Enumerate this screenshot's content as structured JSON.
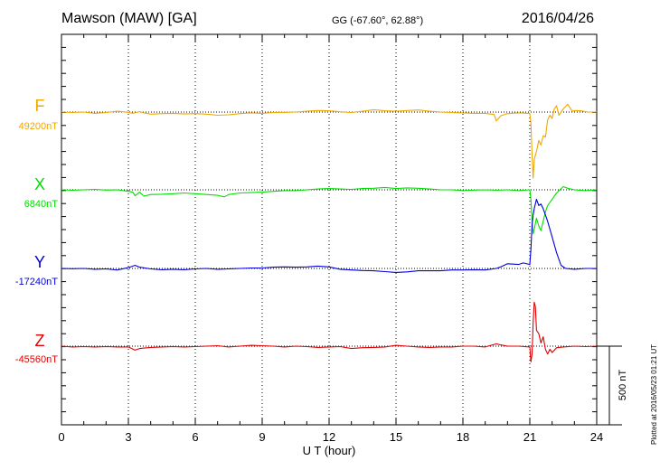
{
  "header": {
    "station": "Mawson (MAW)  [GA]",
    "coords": "GG (-67.60°,  62.88°)",
    "date": "2016/04/26"
  },
  "plotted": "Plotted at 2016/05/23 01:21  UT",
  "chart_data": {
    "type": "line",
    "xlabel": "U T (hour)",
    "xlim": [
      0,
      24
    ],
    "xticks": [
      0,
      3,
      6,
      9,
      12,
      15,
      18,
      21,
      24
    ],
    "ylabel": "",
    "scale_bar": {
      "label": "500 nT",
      "value_nT": 500
    },
    "series": [
      {
        "name": "F",
        "baseline_label": "49200nT",
        "baseline_nT": 49200,
        "color": "#f0a800",
        "points": [
          [
            0,
            0
          ],
          [
            0.5,
            -3
          ],
          [
            1,
            0
          ],
          [
            1.5,
            -8
          ],
          [
            2,
            -3
          ],
          [
            2.5,
            5
          ],
          [
            3,
            -2
          ],
          [
            3.2,
            -8
          ],
          [
            3.5,
            3
          ],
          [
            3.7,
            -5
          ],
          [
            4,
            -13
          ],
          [
            4.5,
            -10
          ],
          [
            5,
            -8
          ],
          [
            5.5,
            -12
          ],
          [
            6,
            -10
          ],
          [
            6.5,
            -13
          ],
          [
            7,
            -20
          ],
          [
            7.5,
            -17
          ],
          [
            8,
            -10
          ],
          [
            8.5,
            -5
          ],
          [
            9,
            -8
          ],
          [
            9.5,
            -3
          ],
          [
            10,
            -2
          ],
          [
            10.5,
            0
          ],
          [
            11,
            5
          ],
          [
            11.5,
            10
          ],
          [
            12,
            8
          ],
          [
            12.5,
            2
          ],
          [
            13,
            -3
          ],
          [
            13.5,
            5
          ],
          [
            14,
            15
          ],
          [
            14.5,
            8
          ],
          [
            15,
            5
          ],
          [
            15.5,
            10
          ],
          [
            16,
            13
          ],
          [
            16.5,
            5
          ],
          [
            17,
            0
          ],
          [
            17.5,
            -3
          ],
          [
            18,
            -5
          ],
          [
            18.5,
            -8
          ],
          [
            19,
            -8
          ],
          [
            19.4,
            -15
          ],
          [
            19.5,
            -57
          ],
          [
            19.7,
            -23
          ],
          [
            20,
            -10
          ],
          [
            20.5,
            -5
          ],
          [
            21,
            -8
          ],
          [
            21.05,
            -70
          ],
          [
            21.1,
            -275
          ],
          [
            21.15,
            -420
          ],
          [
            21.2,
            -300
          ],
          [
            21.3,
            -250
          ],
          [
            21.4,
            -180
          ],
          [
            21.5,
            -210
          ],
          [
            21.6,
            -150
          ],
          [
            21.7,
            -160
          ],
          [
            21.8,
            -50
          ],
          [
            21.9,
            -20
          ],
          [
            22,
            -40
          ],
          [
            22.1,
            20
          ],
          [
            22.2,
            40
          ],
          [
            22.3,
            -20
          ],
          [
            22.5,
            20
          ],
          [
            22.7,
            50
          ],
          [
            22.9,
            5
          ],
          [
            23,
            10
          ],
          [
            23.3,
            8
          ],
          [
            23.6,
            0
          ],
          [
            24,
            0
          ]
        ]
      },
      {
        "name": "X",
        "baseline_label": "6840nT",
        "baseline_nT": 6840,
        "color": "#00e000",
        "points": [
          [
            0,
            0
          ],
          [
            0.5,
            -3
          ],
          [
            1,
            0
          ],
          [
            1.5,
            3
          ],
          [
            2,
            -2
          ],
          [
            2.5,
            0
          ],
          [
            3,
            -10
          ],
          [
            3.2,
            -15
          ],
          [
            3.3,
            -38
          ],
          [
            3.5,
            -15
          ],
          [
            3.7,
            -40
          ],
          [
            4,
            -30
          ],
          [
            4.5,
            -28
          ],
          [
            5,
            -25
          ],
          [
            5.5,
            -20
          ],
          [
            6,
            -25
          ],
          [
            6.5,
            -30
          ],
          [
            7,
            -35
          ],
          [
            7.3,
            -45
          ],
          [
            7.5,
            -30
          ],
          [
            8,
            -20
          ],
          [
            8.5,
            -18
          ],
          [
            9,
            -15
          ],
          [
            9.5,
            -10
          ],
          [
            10,
            -5
          ],
          [
            10.5,
            -5
          ],
          [
            11,
            0
          ],
          [
            11.5,
            5
          ],
          [
            12,
            8
          ],
          [
            12.5,
            5
          ],
          [
            13,
            3
          ],
          [
            13.5,
            8
          ],
          [
            14,
            10
          ],
          [
            14.5,
            15
          ],
          [
            15,
            8
          ],
          [
            15.5,
            12
          ],
          [
            16,
            10
          ],
          [
            16.5,
            5
          ],
          [
            17,
            0
          ],
          [
            17.5,
            0
          ],
          [
            18,
            -5
          ],
          [
            18.5,
            -2
          ],
          [
            19,
            0
          ],
          [
            19.5,
            -3
          ],
          [
            20,
            0
          ],
          [
            20.5,
            -5
          ],
          [
            21,
            0
          ],
          [
            21.05,
            -60
          ],
          [
            21.1,
            -200
          ],
          [
            21.15,
            -280
          ],
          [
            21.2,
            -250
          ],
          [
            21.3,
            -180
          ],
          [
            21.4,
            -230
          ],
          [
            21.5,
            -260
          ],
          [
            21.6,
            -200
          ],
          [
            21.7,
            -140
          ],
          [
            21.8,
            -100
          ],
          [
            22,
            -60
          ],
          [
            22.2,
            -20
          ],
          [
            22.5,
            20
          ],
          [
            22.7,
            10
          ],
          [
            23,
            0
          ],
          [
            23.5,
            -5
          ],
          [
            24,
            0
          ]
        ]
      },
      {
        "name": "Y",
        "baseline_label": "-17240nT",
        "baseline_nT": -17240,
        "color": "#0000e0",
        "points": [
          [
            0,
            0
          ],
          [
            0.5,
            -2
          ],
          [
            1,
            0
          ],
          [
            1.5,
            -5
          ],
          [
            2,
            -3
          ],
          [
            2.5,
            -10
          ],
          [
            3,
            5
          ],
          [
            3.3,
            20
          ],
          [
            3.5,
            8
          ],
          [
            4,
            -3
          ],
          [
            4.5,
            -8
          ],
          [
            5,
            -5
          ],
          [
            5.5,
            -8
          ],
          [
            6,
            -3
          ],
          [
            6.5,
            0
          ],
          [
            7,
            -5
          ],
          [
            7.5,
            -3
          ],
          [
            8,
            0
          ],
          [
            8.5,
            3
          ],
          [
            9,
            3
          ],
          [
            9.5,
            8
          ],
          [
            10,
            10
          ],
          [
            10.5,
            8
          ],
          [
            11,
            10
          ],
          [
            11.5,
            15
          ],
          [
            12,
            10
          ],
          [
            12.5,
            -5
          ],
          [
            13,
            -10
          ],
          [
            13.5,
            -13
          ],
          [
            14,
            -15
          ],
          [
            14.5,
            -20
          ],
          [
            15,
            -25
          ],
          [
            15.5,
            -22
          ],
          [
            16,
            -15
          ],
          [
            16.5,
            -15
          ],
          [
            17,
            -15
          ],
          [
            17.5,
            -10
          ],
          [
            18,
            -10
          ],
          [
            18.5,
            -8
          ],
          [
            19,
            -10
          ],
          [
            19.5,
            0
          ],
          [
            19.7,
            10
          ],
          [
            20,
            30
          ],
          [
            20.5,
            25
          ],
          [
            20.7,
            35
          ],
          [
            21,
            25
          ],
          [
            21.05,
            120
          ],
          [
            21.1,
            280
          ],
          [
            21.15,
            340
          ],
          [
            21.2,
            380
          ],
          [
            21.3,
            440
          ],
          [
            21.4,
            400
          ],
          [
            21.5,
            410
          ],
          [
            21.6,
            380
          ],
          [
            21.7,
            340
          ],
          [
            21.8,
            300
          ],
          [
            22,
            200
          ],
          [
            22.2,
            100
          ],
          [
            22.4,
            20
          ],
          [
            22.6,
            0
          ],
          [
            23,
            -5
          ],
          [
            23.5,
            0
          ],
          [
            24,
            0
          ]
        ]
      },
      {
        "name": "Z",
        "baseline_label": "-45560nT",
        "baseline_nT": -45560,
        "color": "#e00000",
        "points": [
          [
            0,
            0
          ],
          [
            0.5,
            -5
          ],
          [
            1,
            -3
          ],
          [
            1.5,
            -5
          ],
          [
            2,
            -3
          ],
          [
            2.5,
            -5
          ],
          [
            3,
            -5
          ],
          [
            3.3,
            -25
          ],
          [
            3.5,
            -15
          ],
          [
            4,
            -8
          ],
          [
            4.5,
            -5
          ],
          [
            5,
            -3
          ],
          [
            5.5,
            -5
          ],
          [
            6,
            -3
          ],
          [
            6.5,
            0
          ],
          [
            7,
            3
          ],
          [
            7.5,
            -5
          ],
          [
            8,
            0
          ],
          [
            8.5,
            5
          ],
          [
            9,
            3
          ],
          [
            9.5,
            0
          ],
          [
            10,
            -5
          ],
          [
            10.5,
            0
          ],
          [
            11,
            -3
          ],
          [
            11.5,
            -8
          ],
          [
            12,
            -5
          ],
          [
            12.5,
            -3
          ],
          [
            13,
            -15
          ],
          [
            13.5,
            -10
          ],
          [
            14,
            -8
          ],
          [
            14.5,
            -5
          ],
          [
            15,
            5
          ],
          [
            15.5,
            0
          ],
          [
            16,
            -5
          ],
          [
            16.5,
            -8
          ],
          [
            17,
            -5
          ],
          [
            17.5,
            -5
          ],
          [
            18,
            0
          ],
          [
            18.5,
            0
          ],
          [
            19,
            -5
          ],
          [
            19.5,
            15
          ],
          [
            19.7,
            8
          ],
          [
            20,
            0
          ],
          [
            20.5,
            0
          ],
          [
            21,
            -5
          ],
          [
            21.05,
            -100
          ],
          [
            21.1,
            -50
          ],
          [
            21.15,
            150
          ],
          [
            21.2,
            280
          ],
          [
            21.25,
            250
          ],
          [
            21.3,
            100
          ],
          [
            21.4,
            80
          ],
          [
            21.5,
            20
          ],
          [
            21.6,
            60
          ],
          [
            21.7,
            -20
          ],
          [
            21.8,
            -50
          ],
          [
            21.9,
            -20
          ],
          [
            22,
            -40
          ],
          [
            22.2,
            -10
          ],
          [
            22.5,
            -5
          ],
          [
            23,
            0
          ],
          [
            23.5,
            -3
          ],
          [
            24,
            0
          ]
        ]
      }
    ]
  }
}
